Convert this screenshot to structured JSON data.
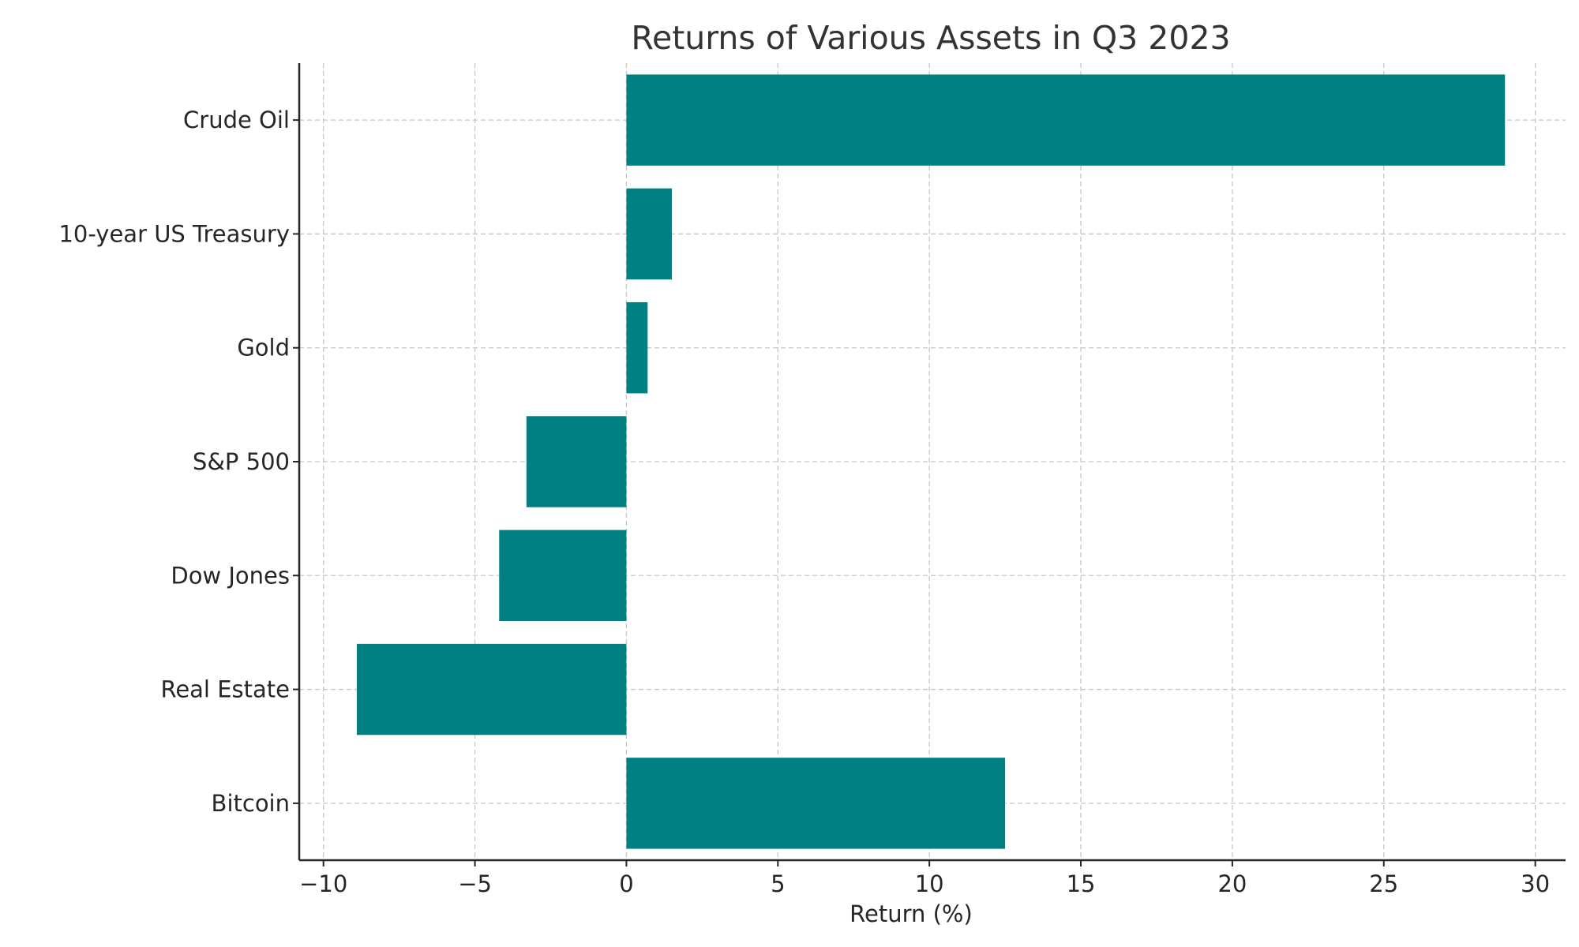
{
  "chart_data": {
    "type": "bar",
    "orientation": "horizontal",
    "title": "Returns of Various Assets in Q3 2023",
    "xlabel": "Return (%)",
    "ylabel": "",
    "categories": [
      "Bitcoin",
      "Real Estate",
      "Dow Jones",
      "S&P 500",
      "Gold",
      "10-year US Treasury",
      "Crude Oil"
    ],
    "values": [
      12.5,
      -8.9,
      -4.2,
      -3.3,
      0.7,
      1.5,
      29.0
    ],
    "xlim": [
      -10.8,
      31.0
    ],
    "xticks": [
      -10,
      -5,
      0,
      5,
      10,
      15,
      20,
      25,
      30
    ],
    "xtick_labels": [
      "−10",
      "−5",
      "0",
      "5",
      "10",
      "15",
      "20",
      "25",
      "30"
    ],
    "grid": true,
    "grid_style": "dashed",
    "bar_color": "#008080"
  }
}
